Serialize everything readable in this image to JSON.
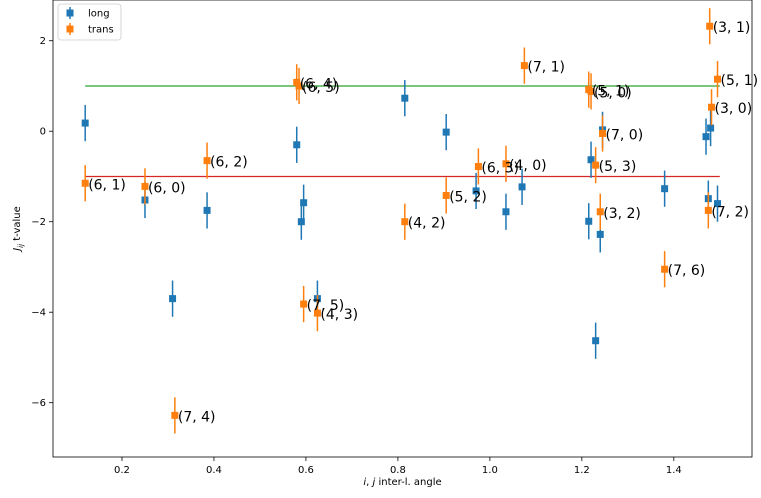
{
  "chart_data": {
    "type": "scatter",
    "xlabel": "i, j inter-l. angle",
    "ylabel": "J_ij t-value",
    "xlim": [
      0.05,
      1.57
    ],
    "ylim": [
      -7.2,
      2.9
    ],
    "xticks": [
      0.2,
      0.4,
      0.6,
      0.8,
      1.0,
      1.2,
      1.4
    ],
    "xtick_labels": [
      "0.2",
      "0.4",
      "0.6",
      "0.8",
      "1.0",
      "1.2",
      "1.4"
    ],
    "yticks": [
      2,
      0,
      -2,
      -4,
      -6
    ],
    "ytick_labels": [
      "2",
      "0",
      "−2",
      "−4",
      "−6"
    ],
    "legend": {
      "placement": "top-left",
      "entries": [
        "long",
        "trans"
      ]
    },
    "colors": {
      "long": "#1f77b4",
      "trans": "#ff7f0e",
      "upper_line": "#2ca02c",
      "lower_line": "#d62728"
    },
    "series": [
      {
        "name": "long",
        "points": [
          {
            "x": 0.12,
            "y": 0.18,
            "err": 0.4
          },
          {
            "x": 0.25,
            "y": -1.52,
            "err": 0.4
          },
          {
            "x": 0.31,
            "y": -3.7,
            "err": 0.4
          },
          {
            "x": 0.385,
            "y": -1.75,
            "err": 0.4
          },
          {
            "x": 0.58,
            "y": -0.3,
            "err": 0.4
          },
          {
            "x": 0.59,
            "y": -2.0,
            "err": 0.4
          },
          {
            "x": 0.595,
            "y": -1.58,
            "err": 0.4
          },
          {
            "x": 0.625,
            "y": -3.7,
            "err": 0.4
          },
          {
            "x": 0.815,
            "y": 0.73,
            "err": 0.4
          },
          {
            "x": 0.905,
            "y": -0.02,
            "err": 0.4
          },
          {
            "x": 0.97,
            "y": -1.32,
            "err": 0.4
          },
          {
            "x": 1.035,
            "y": -1.78,
            "err": 0.4
          },
          {
            "x": 1.07,
            "y": -1.23,
            "err": 0.4
          },
          {
            "x": 1.215,
            "y": -1.99,
            "err": 0.4
          },
          {
            "x": 1.22,
            "y": -0.63,
            "err": 0.4
          },
          {
            "x": 1.23,
            "y": -4.63,
            "err": 0.4
          },
          {
            "x": 1.24,
            "y": -2.28,
            "err": 0.4
          },
          {
            "x": 1.245,
            "y": 0.03,
            "err": 0.4
          },
          {
            "x": 1.38,
            "y": -1.27,
            "err": 0.4
          },
          {
            "x": 1.47,
            "y": -0.12,
            "err": 0.4
          },
          {
            "x": 1.475,
            "y": -1.49,
            "err": 0.4
          },
          {
            "x": 1.48,
            "y": 0.07,
            "err": 0.4
          },
          {
            "x": 1.495,
            "y": -1.6,
            "err": 0.4
          }
        ]
      },
      {
        "name": "trans",
        "points": [
          {
            "x": 0.12,
            "y": -1.15,
            "err": 0.4,
            "label": "(6, 1)"
          },
          {
            "x": 0.25,
            "y": -1.22,
            "err": 0.4,
            "label": "(6, 0)"
          },
          {
            "x": 0.315,
            "y": -6.28,
            "err": 0.4,
            "label": "(7, 4)"
          },
          {
            "x": 0.385,
            "y": -0.65,
            "err": 0.4,
            "label": "(6, 2)"
          },
          {
            "x": 0.58,
            "y": 1.08,
            "err": 0.4,
            "label": "(6, 4)"
          },
          {
            "x": 0.585,
            "y": 1.0,
            "err": 0.4,
            "label": "(6, 5)"
          },
          {
            "x": 0.595,
            "y": -3.82,
            "err": 0.4,
            "label": "(7, 5)"
          },
          {
            "x": 0.625,
            "y": -4.02,
            "err": 0.4,
            "label": "(4, 3)"
          },
          {
            "x": 0.815,
            "y": -2.0,
            "err": 0.4,
            "label": "(4, 2)"
          },
          {
            "x": 0.905,
            "y": -1.42,
            "err": 0.4,
            "label": "(5, 2)"
          },
          {
            "x": 0.975,
            "y": -0.78,
            "err": 0.4,
            "label": "(6, 3)"
          },
          {
            "x": 1.035,
            "y": -0.72,
            "err": 0.4,
            "label": "(4, 0)"
          },
          {
            "x": 1.075,
            "y": 1.45,
            "err": 0.4,
            "label": "(7, 1)"
          },
          {
            "x": 1.215,
            "y": 0.92,
            "err": 0.4,
            "label": "(5, 1)"
          },
          {
            "x": 1.22,
            "y": 0.88,
            "err": 0.4,
            "label": "(5, 0)"
          },
          {
            "x": 1.23,
            "y": -0.75,
            "err": 0.4,
            "label": "(5, 3)"
          },
          {
            "x": 1.24,
            "y": -1.78,
            "err": 0.4,
            "label": "(3, 2)"
          },
          {
            "x": 1.245,
            "y": -0.05,
            "err": 0.4,
            "label": "(7, 0)"
          },
          {
            "x": 1.38,
            "y": -3.05,
            "err": 0.4,
            "label": "(7, 6)"
          },
          {
            "x": 1.475,
            "y": -1.75,
            "err": 0.4,
            "label": "(7, 2)"
          },
          {
            "x": 1.478,
            "y": 2.32,
            "err": 0.4,
            "label": "(3, 1)"
          },
          {
            "x": 1.482,
            "y": 0.53,
            "err": 0.4,
            "label": "(3, 0)"
          },
          {
            "x": 1.495,
            "y": 1.15,
            "err": 0.4,
            "label": "(5, 1)"
          }
        ]
      }
    ],
    "reference_lines": [
      {
        "y": 1.0,
        "x_start": 0.12,
        "x_end": 1.5,
        "color_key": "upper_line"
      },
      {
        "y": -1.0,
        "x_start": 0.12,
        "x_end": 1.5,
        "color_key": "lower_line"
      }
    ]
  }
}
